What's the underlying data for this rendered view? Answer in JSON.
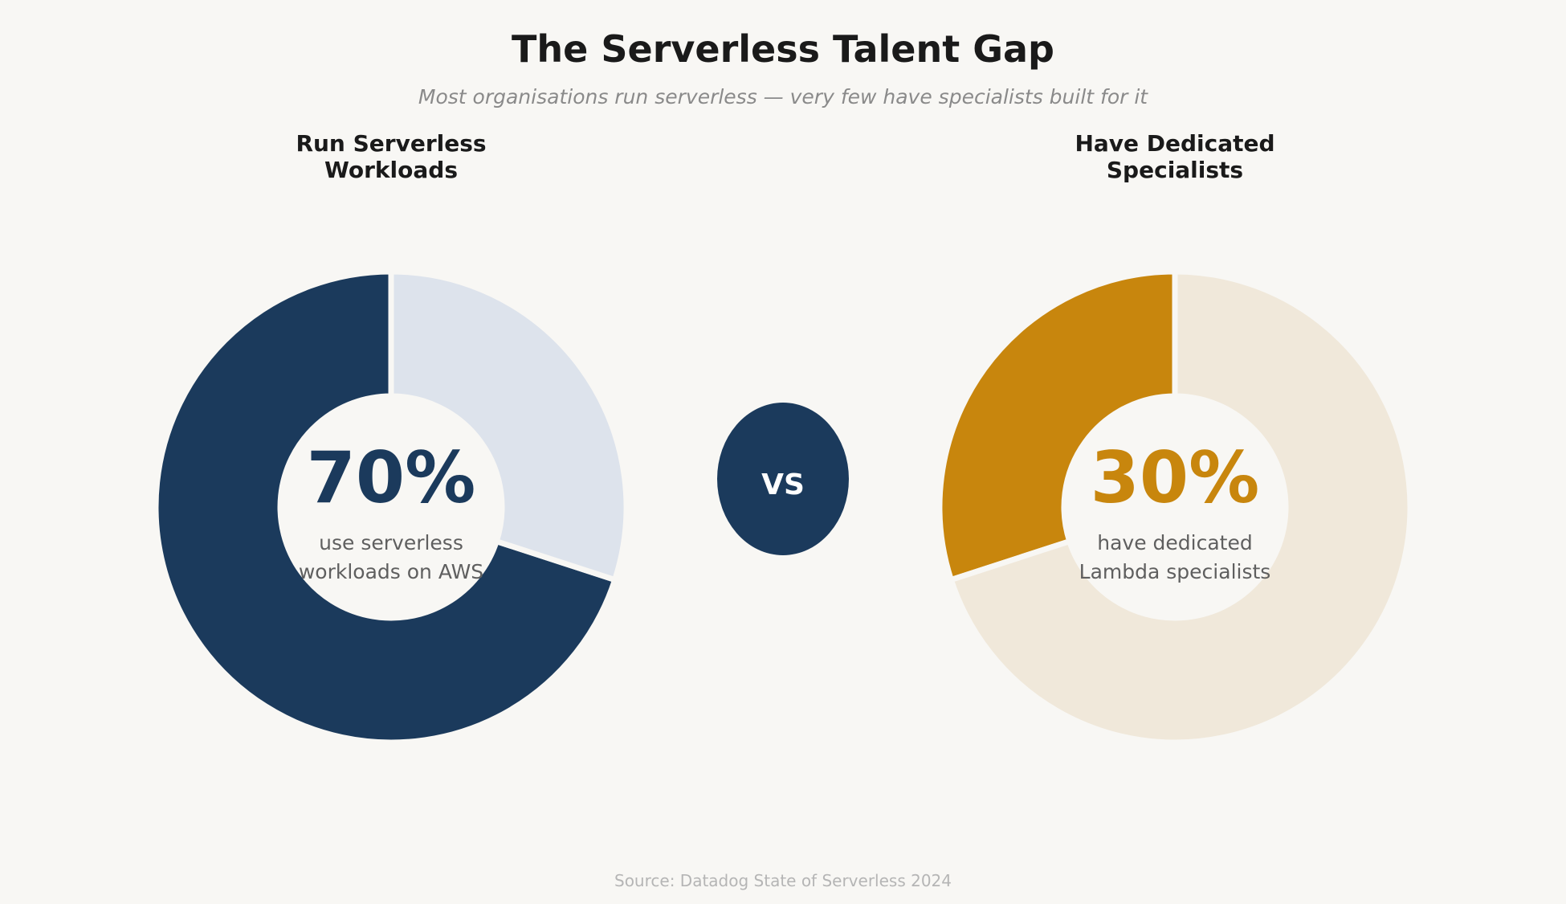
{
  "title": "The Serverless Talent Gap",
  "subtitle": "Most organisations run serverless — very few have specialists built for it",
  "vs_label": "VS",
  "source": "Source: Datadog State of Serverless 2024",
  "chart_data": [
    {
      "type": "pie",
      "style": "donut",
      "heading_lines": [
        "Run Serverless",
        "Workloads"
      ],
      "center_value": "70%",
      "center_caption_lines": [
        "use serverless",
        "workloads on AWS"
      ],
      "values": [
        70,
        30
      ],
      "colors": [
        "#1b3a5c",
        "#dde3ec"
      ],
      "value_color": "#1b3a5c",
      "highlight_index": 0
    },
    {
      "type": "pie",
      "style": "donut",
      "heading_lines": [
        "Have Dedicated",
        "Specialists"
      ],
      "center_value": "30%",
      "center_caption_lines": [
        "have dedicated",
        "Lambda specialists"
      ],
      "values": [
        30,
        70
      ],
      "colors": [
        "#c8860d",
        "#f0e8da"
      ],
      "value_color": "#c8860d",
      "highlight_index": 0
    }
  ],
  "colors": {
    "background": "#f8f7f4",
    "vs_badge": "#1b3a5c",
    "vs_text": "#ffffff",
    "caption": "#5f5f5f"
  }
}
